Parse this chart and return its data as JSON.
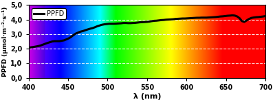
{
  "xlim": [
    400,
    700
  ],
  "ylim": [
    0,
    5.0
  ],
  "yticks": [
    0.0,
    1.0,
    2.0,
    3.0,
    4.0,
    5.0
  ],
  "ytick_labels": [
    "0,0",
    "1,0",
    "2,0",
    "3,0",
    "4,0",
    "5,0"
  ],
  "xticks": [
    400,
    450,
    500,
    550,
    600,
    650,
    700
  ],
  "xlabel": "λ (nm)",
  "ylabel": "PPFD (μmol·m⁻²·s⁻¹)",
  "legend_label": "PPFD",
  "line_color": "black",
  "line_width": 2.2,
  "ppfd_x": [
    400,
    403,
    406,
    409,
    412,
    415,
    418,
    421,
    424,
    427,
    430,
    433,
    436,
    439,
    442,
    445,
    448,
    451,
    454,
    457,
    460,
    463,
    466,
    469,
    472,
    475,
    478,
    481,
    484,
    487,
    490,
    493,
    496,
    499,
    502,
    505,
    508,
    511,
    514,
    517,
    520,
    523,
    526,
    529,
    532,
    535,
    538,
    541,
    544,
    547,
    550,
    553,
    556,
    559,
    562,
    565,
    568,
    571,
    574,
    577,
    580,
    583,
    586,
    589,
    592,
    595,
    598,
    601,
    604,
    607,
    610,
    613,
    616,
    619,
    622,
    625,
    628,
    631,
    634,
    637,
    640,
    643,
    646,
    649,
    652,
    655,
    658,
    661,
    664,
    667,
    670,
    673,
    676,
    679,
    682,
    685,
    688,
    691,
    694,
    697,
    700
  ],
  "ppfd_y": [
    2.05,
    2.1,
    2.12,
    2.15,
    2.18,
    2.22,
    2.28,
    2.34,
    2.4,
    2.45,
    2.5,
    2.52,
    2.52,
    2.52,
    2.55,
    2.58,
    2.65,
    2.72,
    2.82,
    2.95,
    3.05,
    3.12,
    3.18,
    3.22,
    3.28,
    3.33,
    3.38,
    3.42,
    3.48,
    3.55,
    3.6,
    3.65,
    3.68,
    3.7,
    3.72,
    3.72,
    3.72,
    3.73,
    3.74,
    3.75,
    3.77,
    3.77,
    3.76,
    3.76,
    3.77,
    3.78,
    3.8,
    3.82,
    3.83,
    3.84,
    3.85,
    3.87,
    3.9,
    3.92,
    3.93,
    3.95,
    3.97,
    3.98,
    4.0,
    4.01,
    4.02,
    4.03,
    4.05,
    4.06,
    4.07,
    4.08,
    4.08,
    4.09,
    4.1,
    4.11,
    4.12,
    4.13,
    4.13,
    4.14,
    4.14,
    4.14,
    4.15,
    4.16,
    4.17,
    4.18,
    4.2,
    4.22,
    4.23,
    4.25,
    4.27,
    4.28,
    4.3,
    4.28,
    4.22,
    4.1,
    3.9,
    3.85,
    3.95,
    4.05,
    4.12,
    4.15,
    4.17,
    4.18,
    4.2,
    4.22,
    4.25
  ]
}
